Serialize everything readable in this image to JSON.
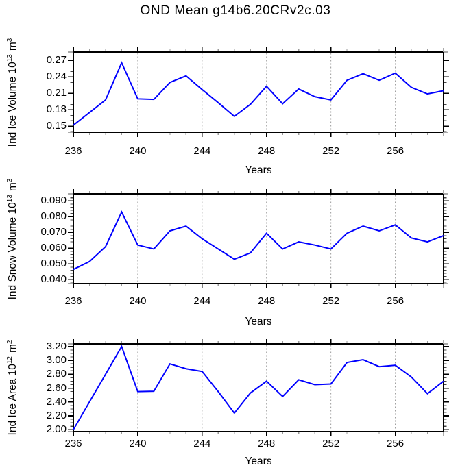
{
  "title": "OND Mean g14b6.20CRv2c.03",
  "line_color": "#0000ff",
  "grid_color": "#999999",
  "axis_color": "#000000",
  "minor_tick_color_x": "#999999",
  "minor_tick_color_y": "#444444",
  "corner_tick_color": "#aaaaaa",
  "chart_data": [
    {
      "type": "line",
      "ylabel_main": "Ind Ice Volume 10",
      "ylabel_exp": "13",
      "ylabel_unit": "m",
      "ylabel_unit_exp": "3",
      "xlabel": "Years",
      "x": [
        236,
        237,
        238,
        239,
        240,
        241,
        242,
        243,
        244,
        245,
        246,
        247,
        248,
        249,
        250,
        251,
        252,
        253,
        254,
        255,
        256,
        257,
        258,
        259
      ],
      "values": [
        0.152,
        0.175,
        0.198,
        0.266,
        0.2,
        0.199,
        0.23,
        0.242,
        0.217,
        0.193,
        0.168,
        0.19,
        0.223,
        0.191,
        0.218,
        0.204,
        0.198,
        0.234,
        0.246,
        0.234,
        0.247,
        0.221,
        0.209,
        0.215
      ],
      "xlim": [
        236,
        259
      ],
      "ylim": [
        0.1391,
        0.2855
      ],
      "xticks": [
        236,
        240,
        244,
        248,
        252,
        256
      ],
      "xtick_labels": [
        "236",
        "240",
        "244",
        "248",
        "252",
        "256"
      ],
      "xminor_step": 1,
      "yticks": [
        0.15,
        0.18,
        0.21,
        0.24,
        0.27
      ],
      "ytick_labels": [
        "0.15",
        "0.18",
        "0.21",
        "0.24",
        "0.27"
      ],
      "yminor_step": 0.01,
      "grid_x": [
        240,
        244,
        248,
        252,
        256
      ]
    },
    {
      "type": "line",
      "ylabel_main": "Ind Snow Volume 10",
      "ylabel_exp": "13",
      "ylabel_unit": "m",
      "ylabel_unit_exp": "3",
      "xlabel": "Years",
      "x": [
        236,
        237,
        238,
        239,
        240,
        241,
        242,
        243,
        244,
        245,
        246,
        247,
        248,
        249,
        250,
        251,
        252,
        253,
        254,
        255,
        256,
        257,
        258,
        259
      ],
      "values": [
        0.0465,
        0.0515,
        0.061,
        0.083,
        0.062,
        0.0595,
        0.071,
        0.074,
        0.066,
        0.0595,
        0.053,
        0.057,
        0.0695,
        0.0595,
        0.064,
        0.062,
        0.0595,
        0.0695,
        0.074,
        0.071,
        0.0748,
        0.0665,
        0.064,
        0.068
      ],
      "xlim": [
        236,
        259
      ],
      "ylim": [
        0.0375,
        0.0945
      ],
      "xticks": [
        236,
        240,
        244,
        248,
        252,
        256
      ],
      "xtick_labels": [
        "236",
        "240",
        "244",
        "248",
        "252",
        "256"
      ],
      "xminor_step": 1,
      "yticks": [
        0.04,
        0.05,
        0.06,
        0.07,
        0.08,
        0.09
      ],
      "ytick_labels": [
        "0.040",
        "0.050",
        "0.060",
        "0.070",
        "0.080",
        "0.090"
      ],
      "yminor_step": 0.002,
      "grid_x": [
        240,
        244,
        248,
        252,
        256
      ]
    },
    {
      "type": "line",
      "ylabel_main": "Ind Ice Area 10",
      "ylabel_exp": "12",
      "ylabel_unit": "m",
      "ylabel_unit_exp": "2",
      "xlabel": "Years",
      "x": [
        236,
        237,
        238,
        239,
        240,
        241,
        242,
        243,
        244,
        245,
        246,
        247,
        248,
        249,
        250,
        251,
        252,
        253,
        254,
        255,
        256,
        257,
        258,
        259
      ],
      "values": [
        2.0,
        2.4,
        2.8,
        3.2,
        2.55,
        2.555,
        2.95,
        2.88,
        2.84,
        2.55,
        2.24,
        2.53,
        2.7,
        2.48,
        2.72,
        2.65,
        2.66,
        2.97,
        3.01,
        2.91,
        2.93,
        2.76,
        2.52,
        2.7
      ],
      "xlim": [
        236,
        259
      ],
      "ylim": [
        1.973,
        3.238
      ],
      "xticks": [
        236,
        240,
        244,
        248,
        252,
        256
      ],
      "xtick_labels": [
        "236",
        "240",
        "244",
        "248",
        "252",
        "256"
      ],
      "xminor_step": 1,
      "yticks": [
        2.0,
        2.2,
        2.4,
        2.6,
        2.8,
        3.0,
        3.2
      ],
      "ytick_labels": [
        "2.00",
        "2.20",
        "2.40",
        "2.60",
        "2.80",
        "3.00",
        "3.20"
      ],
      "yminor_step": 0.05,
      "grid_x": [
        240,
        244,
        248,
        252,
        256
      ]
    }
  ]
}
